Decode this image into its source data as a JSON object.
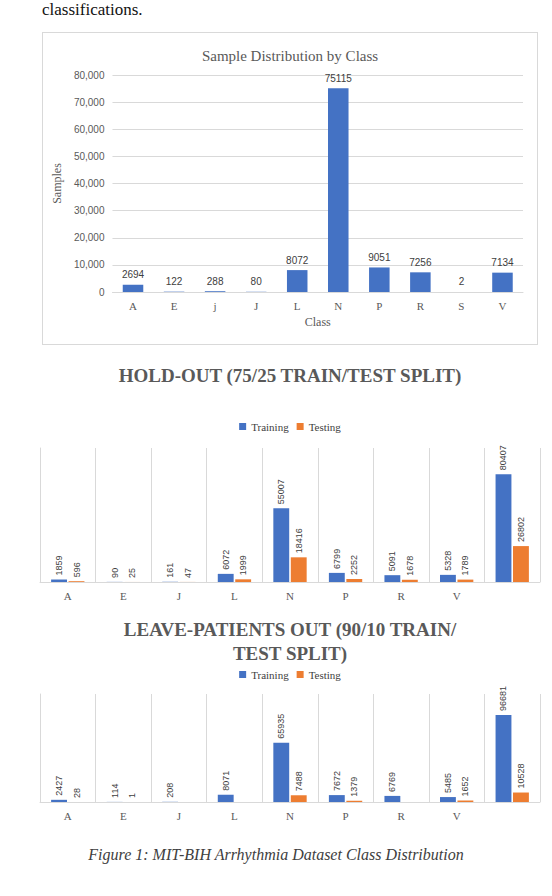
{
  "page_text": "classifications.",
  "caption": "Figure 1: MIT-BIH Arrhythmia Dataset Class Distribution",
  "chart_data": [
    {
      "type": "bar",
      "title": "Sample Distribution by Class",
      "x_label": "Class",
      "y_label": "Samples",
      "categories": [
        "A",
        "E",
        "j",
        "J",
        "L",
        "N",
        "P",
        "R",
        "S",
        "V"
      ],
      "values": [
        2694,
        122,
        288,
        80,
        8072,
        75115,
        9051,
        7256,
        2,
        7134
      ],
      "color": "#4472c4",
      "ylim": [
        0,
        80000
      ],
      "yticks": [
        0,
        10000,
        20000,
        30000,
        40000,
        50000,
        60000,
        70000,
        80000
      ],
      "grid": true,
      "data_labels": true
    },
    {
      "type": "bar",
      "title": "HOLD-OUT (75/25 TRAIN/TEST SPLIT)",
      "categories": [
        "A",
        "E",
        "J",
        "L",
        "N",
        "P",
        "R",
        "V",
        null
      ],
      "series": [
        {
          "name": "Training",
          "color": "#4472c4",
          "values": [
            1859,
            90,
            161,
            6072,
            55007,
            6799,
            5091,
            5328,
            80407
          ]
        },
        {
          "name": "Testing",
          "color": "#ed7d31",
          "values": [
            596,
            25,
            47,
            1999,
            18416,
            2252,
            1678,
            1789,
            26802
          ]
        }
      ],
      "ylim": [
        0,
        100000
      ],
      "grid": false,
      "legend": "top",
      "data_labels": true,
      "tick_labels": "x"
    },
    {
      "type": "bar",
      "title": "LEAVE-PATIENTS OUT (90/10 TRAIN/TEST SPLIT)",
      "categories": [
        "A",
        "E",
        "J",
        "L",
        "N",
        "P",
        "R",
        "V",
        null
      ],
      "series": [
        {
          "name": "Training",
          "color": "#4472c4",
          "values": [
            2427,
            114,
            208,
            8071,
            65935,
            7672,
            6769,
            5485,
            96681
          ]
        },
        {
          "name": "Testing",
          "color": "#ed7d31",
          "values": [
            28,
            1,
            null,
            null,
            7488,
            1379,
            null,
            1652,
            10528
          ]
        }
      ],
      "ylim": [
        0,
        120000
      ],
      "grid": false,
      "legend": "top",
      "data_labels": true,
      "tick_labels": "x"
    }
  ]
}
